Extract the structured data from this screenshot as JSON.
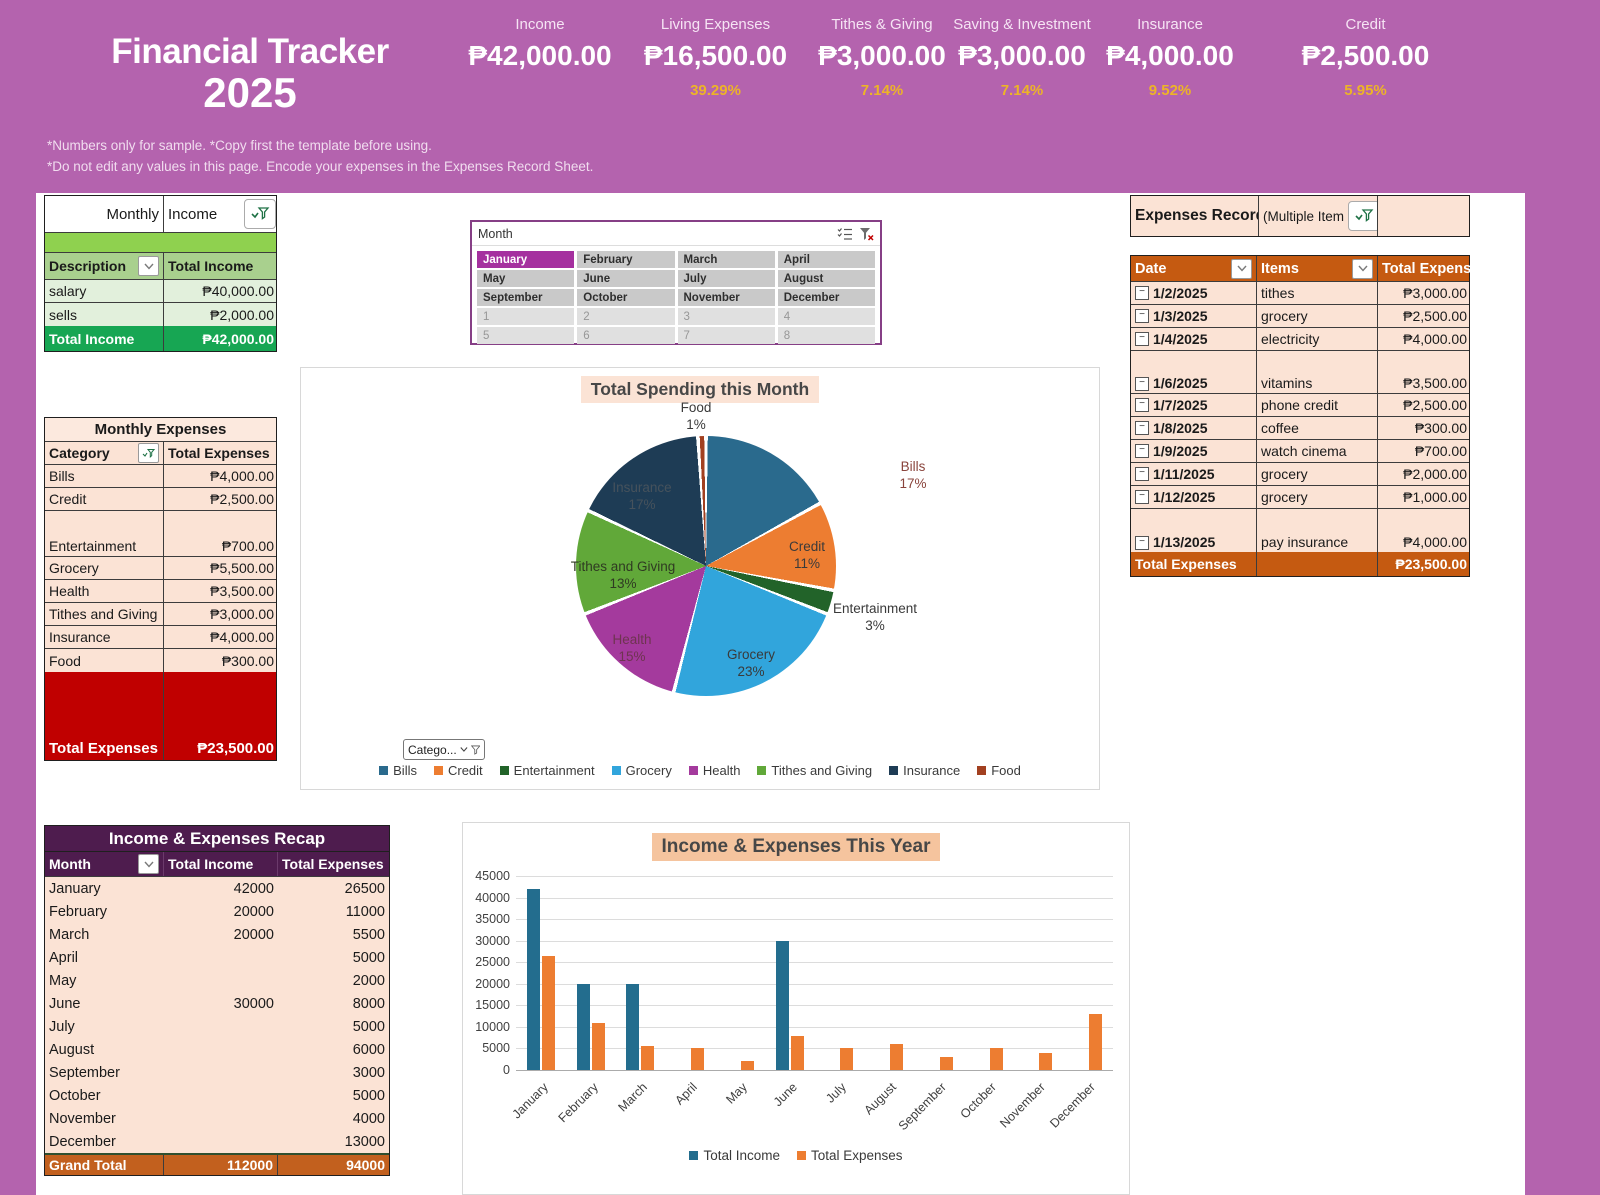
{
  "header": {
    "title_line1": "Financial Tracker",
    "title_line2": "2025",
    "stats": [
      {
        "label": "Income",
        "amount": "₱42,000.00",
        "pct": ""
      },
      {
        "label": "Living Expenses",
        "amount": "₱16,500.00",
        "pct": "39.29%"
      },
      {
        "label": "Tithes & Giving",
        "amount": "₱3,000.00",
        "pct": "7.14%"
      },
      {
        "label": "Saving & Investment",
        "amount": "₱3,000.00",
        "pct": "7.14%"
      },
      {
        "label": "Insurance",
        "amount": "₱4,000.00",
        "pct": "9.52%"
      },
      {
        "label": "Credit",
        "amount": "₱2,500.00",
        "pct": "5.95%"
      }
    ],
    "notes": [
      "*Numbers only for sample. *Copy first the template before using.",
      "*Do not edit any values in this page. Encode your expenses in the Expenses Record Sheet."
    ]
  },
  "monthly_income": {
    "header_left": "Monthly",
    "header_right": "Income",
    "col_description": "Description",
    "col_total": "Total Income",
    "rows": [
      {
        "desc": "salary",
        "amount": "₱40,000.00"
      },
      {
        "desc": "sells",
        "amount": "₱2,000.00"
      }
    ],
    "total_label": "Total Income",
    "total_amount": "₱42,000.00"
  },
  "month_slicer": {
    "title": "Month",
    "items": [
      {
        "label": "January",
        "state": "sel"
      },
      {
        "label": "February",
        "state": "m"
      },
      {
        "label": "March",
        "state": "m"
      },
      {
        "label": "April",
        "state": "m"
      },
      {
        "label": "May",
        "state": "m"
      },
      {
        "label": "June",
        "state": "m"
      },
      {
        "label": "July",
        "state": "m"
      },
      {
        "label": "August",
        "state": "m"
      },
      {
        "label": "September",
        "state": "m"
      },
      {
        "label": "October",
        "state": "m"
      },
      {
        "label": "November",
        "state": "m"
      },
      {
        "label": "December",
        "state": "m"
      },
      {
        "label": "1",
        "state": "num"
      },
      {
        "label": "2",
        "state": "num"
      },
      {
        "label": "3",
        "state": "num"
      },
      {
        "label": "4",
        "state": "num"
      },
      {
        "label": "5",
        "state": "num"
      },
      {
        "label": "6",
        "state": "num"
      },
      {
        "label": "7",
        "state": "num"
      },
      {
        "label": "8",
        "state": "num"
      }
    ]
  },
  "monthly_expenses": {
    "title": "Monthly Expenses",
    "col_category": "Category",
    "col_total": "Total Expenses",
    "rows": [
      {
        "cat": "Bills",
        "amount": "₱4,000.00"
      },
      {
        "cat": "Credit",
        "amount": "₱2,500.00"
      },
      {
        "cat": "Entertainment",
        "amount": "₱700.00"
      },
      {
        "cat": "Grocery",
        "amount": "₱5,500.00"
      },
      {
        "cat": "Health",
        "amount": "₱3,500.00"
      },
      {
        "cat": "Tithes and Giving",
        "amount": "₱3,000.00"
      },
      {
        "cat": "Insurance",
        "amount": "₱4,000.00"
      },
      {
        "cat": "Food",
        "amount": "₱300.00"
      }
    ],
    "total_label": "Total Expenses",
    "total_amount": "₱23,500.00"
  },
  "expenses_record": {
    "title": "Expenses Record",
    "filter_value": "(Multiple Item",
    "col_date": "Date",
    "col_items": "Items",
    "col_total": "Total Expens",
    "rows": [
      {
        "date": "1/2/2025",
        "item": "tithes",
        "amount": "₱3,000.00"
      },
      {
        "date": "1/3/2025",
        "item": "grocery",
        "amount": "₱2,500.00"
      },
      {
        "date": "1/4/2025",
        "item": "electricity",
        "amount": "₱4,000.00"
      },
      {
        "date": "1/6/2025",
        "item": "vitamins",
        "amount": "₱3,500.00"
      },
      {
        "date": "1/7/2025",
        "item": "phone credit",
        "amount": "₱2,500.00"
      },
      {
        "date": "1/8/2025",
        "item": "coffee",
        "amount": "₱300.00"
      },
      {
        "date": "1/9/2025",
        "item": "watch cinema",
        "amount": "₱700.00"
      },
      {
        "date": "1/11/2025",
        "item": "grocery",
        "amount": "₱2,000.00"
      },
      {
        "date": "1/12/2025",
        "item": "grocery",
        "amount": "₱1,000.00"
      },
      {
        "date": "1/13/2025",
        "item": "pay insurance",
        "amount": "₱4,000.00"
      }
    ],
    "total_label": "Total Expenses",
    "total_amount": "₱23,500.00"
  },
  "recap": {
    "title": "Income & Expenses Recap",
    "col_month": "Month",
    "col_income": "Total Income",
    "col_expenses": "Total Expenses",
    "rows": [
      {
        "month": "January",
        "income": "42000",
        "expenses": "26500"
      },
      {
        "month": "February",
        "income": "20000",
        "expenses": "11000"
      },
      {
        "month": "March",
        "income": "20000",
        "expenses": "5500"
      },
      {
        "month": "April",
        "income": "",
        "expenses": "5000"
      },
      {
        "month": "May",
        "income": "",
        "expenses": "2000"
      },
      {
        "month": "June",
        "income": "30000",
        "expenses": "8000"
      },
      {
        "month": "July",
        "income": "",
        "expenses": "5000"
      },
      {
        "month": "August",
        "income": "",
        "expenses": "6000"
      },
      {
        "month": "September",
        "income": "",
        "expenses": "3000"
      },
      {
        "month": "October",
        "income": "",
        "expenses": "5000"
      },
      {
        "month": "November",
        "income": "",
        "expenses": "4000"
      },
      {
        "month": "December",
        "income": "",
        "expenses": "13000"
      }
    ],
    "grand_label": "Grand Total",
    "grand_income": "112000",
    "grand_expenses": "94000"
  },
  "chart_data": [
    {
      "type": "pie",
      "title": "Total Spending this Month",
      "filter_button": "Catego...",
      "legend_position": "bottom",
      "slices": [
        {
          "label": "Bills",
          "pct": 17,
          "pct_label": "17%",
          "color": "#2A6A8D"
        },
        {
          "label": "Credit",
          "pct": 11,
          "pct_label": "11%",
          "color": "#ED7D31"
        },
        {
          "label": "Entertainment",
          "pct": 3,
          "pct_label": "3%",
          "color": "#226329"
        },
        {
          "label": "Grocery",
          "pct": 23,
          "pct_label": "23%",
          "color": "#31A5DC"
        },
        {
          "label": "Health",
          "pct": 15,
          "pct_label": "15%",
          "color": "#A43A9D"
        },
        {
          "label": "Tithes and Giving",
          "pct": 13,
          "pct_label": "13%",
          "color": "#61A839"
        },
        {
          "label": "Insurance",
          "pct": 17,
          "pct_label": "17%",
          "color": "#1E3C55"
        },
        {
          "label": "Food",
          "pct": 1,
          "pct_label": "1%",
          "color": "#A24020"
        }
      ]
    },
    {
      "type": "bar",
      "title": "Income & Expenses This Year",
      "categories": [
        "January",
        "February",
        "March",
        "April",
        "May",
        "June",
        "July",
        "August",
        "September",
        "October",
        "November",
        "December"
      ],
      "series": [
        {
          "name": "Total Income",
          "color": "#236D8E",
          "values": [
            42000,
            20000,
            20000,
            0,
            0,
            30000,
            0,
            0,
            0,
            0,
            0,
            0
          ]
        },
        {
          "name": "Total Expenses",
          "color": "#ED7D31",
          "values": [
            26500,
            11000,
            5500,
            5000,
            2000,
            8000,
            5000,
            6000,
            3000,
            5000,
            4000,
            13000
          ]
        }
      ],
      "ylim": [
        0,
        45000
      ],
      "ytick_step": 5000,
      "grid": true,
      "legend_position": "bottom"
    }
  ]
}
